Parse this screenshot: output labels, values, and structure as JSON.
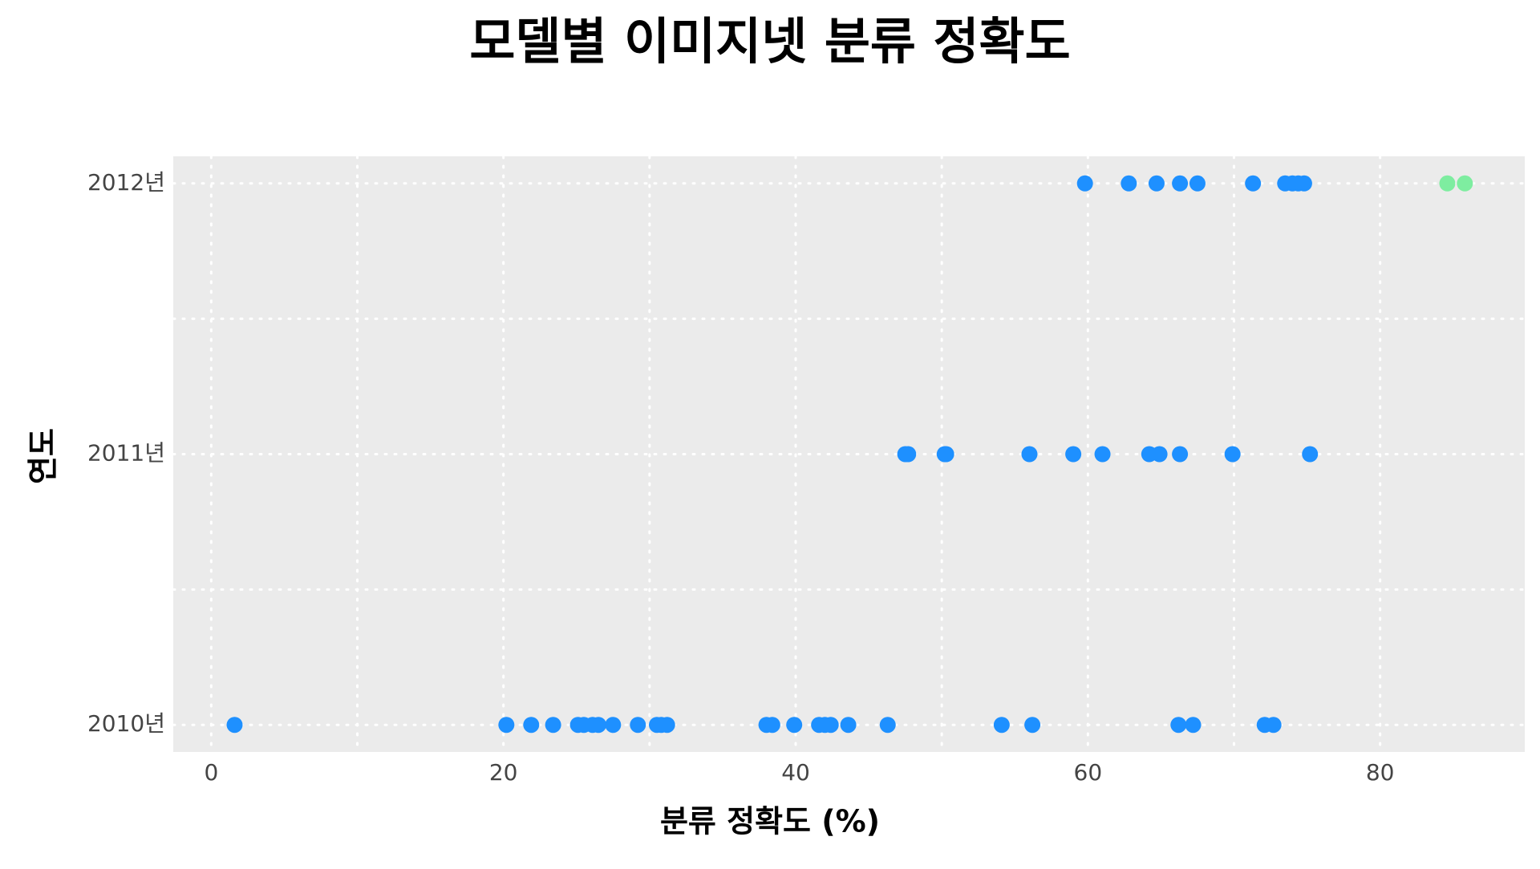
{
  "chart_data": {
    "type": "strip",
    "title": "모델별 이미지넷 분류 정확도",
    "x_label": "분류 정확도 (%)",
    "y_label": "연도",
    "categories": [
      "2010년",
      "2011년",
      "2012년"
    ],
    "xlim": [
      -2.6,
      89.9
    ],
    "xticks": [
      0,
      20,
      40,
      60,
      80
    ],
    "x_minor_ticks": [
      10,
      30,
      50,
      70
    ],
    "grid": true,
    "background": "#ebebeb",
    "series": [
      {
        "color": "#1e90ff",
        "values": [
          [
            1.6,
            20.2,
            21.9,
            23.4,
            25.1,
            25.5,
            26.1,
            26.5,
            27.5,
            29.2,
            30.5,
            30.8,
            31.2,
            38.0,
            38.4,
            39.9,
            41.6,
            42.0,
            42.4,
            43.6,
            46.3,
            54.1,
            56.2,
            66.2,
            67.2,
            72.1,
            72.7
          ],
          [
            47.5,
            47.7,
            50.2,
            50.3,
            56.0,
            59.0,
            61.0,
            64.2,
            64.9,
            66.3,
            69.9,
            75.2
          ],
          [
            59.8,
            62.8,
            64.7,
            66.3,
            67.5,
            71.3,
            73.5,
            74.0,
            74.4,
            74.8
          ]
        ]
      },
      {
        "color": "#7eeda0",
        "values": [
          [],
          [],
          [
            84.6,
            85.8
          ]
        ]
      }
    ]
  }
}
